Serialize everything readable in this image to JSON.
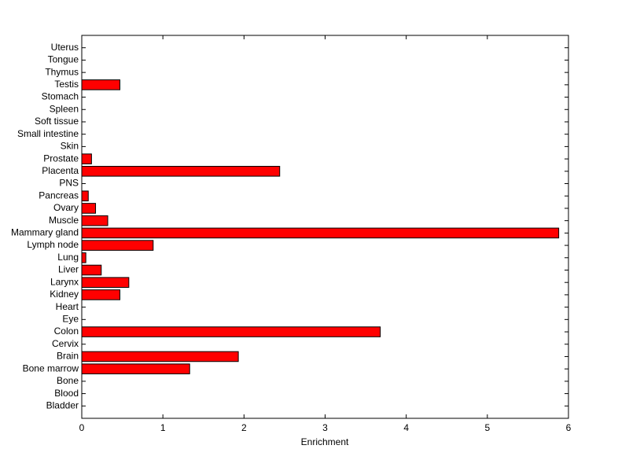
{
  "chart_data": {
    "type": "barh",
    "xlabel": "Enrichment",
    "categories": [
      "Bladder",
      "Blood",
      "Bone",
      "Bone marrow",
      "Brain",
      "Cervix",
      "Colon",
      "Eye",
      "Heart",
      "Kidney",
      "Larynx",
      "Liver",
      "Lung",
      "Lymph node",
      "Mammary gland",
      "Muscle",
      "Ovary",
      "Pancreas",
      "PNS",
      "Placenta",
      "Prostate",
      "Skin",
      "Small intestine",
      "Soft tissue",
      "Spleen",
      "Stomach",
      "Testis",
      "Thymus",
      "Tongue",
      "Uterus"
    ],
    "values": [
      0,
      0,
      0,
      1.33,
      1.93,
      0,
      3.68,
      0,
      0,
      0.47,
      0.58,
      0.24,
      0.05,
      0.88,
      5.88,
      0.32,
      0.17,
      0.08,
      0,
      2.44,
      0.12,
      0,
      0,
      0,
      0,
      0,
      0.47,
      0,
      0,
      0
    ],
    "color": "#ff0000",
    "xlim": [
      0,
      6
    ],
    "xticks": [
      0,
      1,
      2,
      3,
      4,
      5,
      6
    ]
  }
}
